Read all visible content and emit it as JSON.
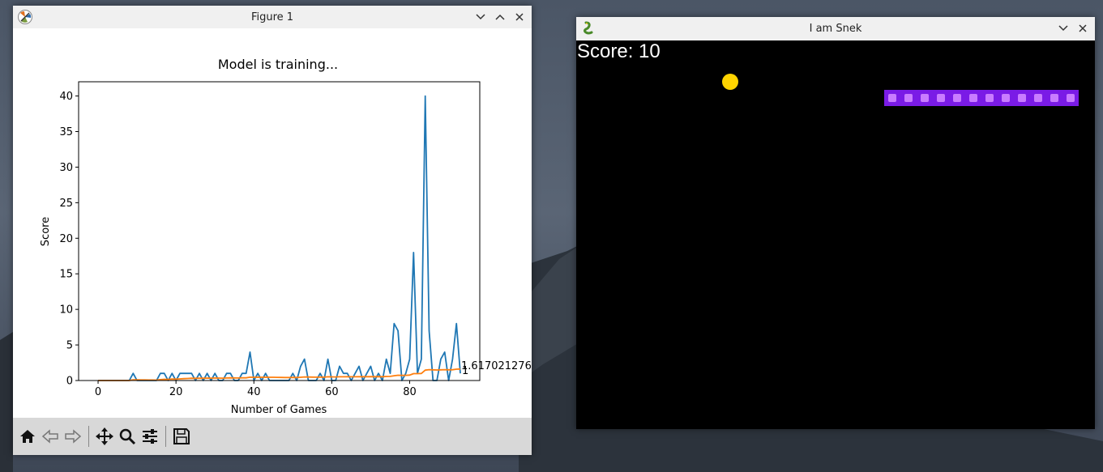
{
  "figure_window": {
    "title": "Figure 1"
  },
  "chart_data": {
    "type": "line",
    "title": "Model is training...",
    "xlabel": "Number of Games",
    "ylabel": "Score",
    "xlim": [
      -5,
      98
    ],
    "ylim": [
      0,
      42
    ],
    "xticks": [
      0,
      20,
      40,
      60,
      80
    ],
    "yticks": [
      0,
      5,
      10,
      15,
      20,
      25,
      30,
      35,
      40
    ],
    "grid": false,
    "series": [
      {
        "color": "#1f77b4",
        "values": [
          0,
          0,
          0,
          0,
          0,
          0,
          0,
          0,
          0,
          1,
          0,
          0,
          0,
          0,
          0,
          0,
          1,
          1,
          0,
          1,
          0,
          1,
          1,
          1,
          1,
          0,
          1,
          0,
          1,
          0,
          1,
          0,
          0,
          1,
          1,
          0,
          0,
          1,
          1,
          4,
          0,
          1,
          0,
          1,
          0,
          0,
          0,
          0,
          0,
          0,
          1,
          0,
          2,
          3,
          0,
          0,
          0,
          1,
          0,
          3,
          0,
          0,
          2,
          1,
          1,
          0,
          1,
          2,
          0,
          1,
          2,
          0,
          1,
          0,
          3,
          1,
          8,
          7,
          0,
          1,
          3,
          18,
          1,
          3,
          40,
          7,
          0,
          0,
          3,
          4,
          0,
          3,
          8,
          1
        ]
      },
      {
        "color": "#ff7f0e",
        "values": [
          0,
          0,
          0,
          0,
          0,
          0,
          0,
          0,
          0,
          0.1,
          0.09,
          0.08,
          0.08,
          0.07,
          0.07,
          0.06,
          0.12,
          0.17,
          0.16,
          0.2,
          0.19,
          0.23,
          0.26,
          0.29,
          0.32,
          0.31,
          0.33,
          0.32,
          0.34,
          0.33,
          0.35,
          0.34,
          0.33,
          0.35,
          0.37,
          0.36,
          0.35,
          0.37,
          0.38,
          0.47,
          0.46,
          0.47,
          0.46,
          0.47,
          0.46,
          0.45,
          0.44,
          0.43,
          0.42,
          0.42,
          0.43,
          0.42,
          0.45,
          0.5,
          0.49,
          0.48,
          0.47,
          0.48,
          0.47,
          0.52,
          0.51,
          0.5,
          0.52,
          0.52,
          0.53,
          0.52,
          0.52,
          0.54,
          0.53,
          0.53,
          0.55,
          0.54,
          0.55,
          0.54,
          0.57,
          0.58,
          0.67,
          0.74,
          0.73,
          0.73,
          0.76,
          0.97,
          0.97,
          0.99,
          1.46,
          1.52,
          1.5,
          1.48,
          1.5,
          1.52,
          1.5,
          1.51,
          1.59,
          1.617
        ]
      }
    ],
    "annotations": [
      "1.617021276",
      "1"
    ]
  },
  "toolbar": {
    "tools": [
      "home-icon",
      "back-arrow-icon",
      "forward-arrow-icon",
      "pan-icon",
      "zoom-icon",
      "configure-subplots-icon",
      "save-icon"
    ]
  },
  "snake_window": {
    "title": "I am Snek",
    "score_label": "Score: 10",
    "colors": {
      "food": "#ffd400",
      "snake_body": "#7a1be6",
      "snake_inner": "#c97cff"
    },
    "snake_length": 12
  }
}
